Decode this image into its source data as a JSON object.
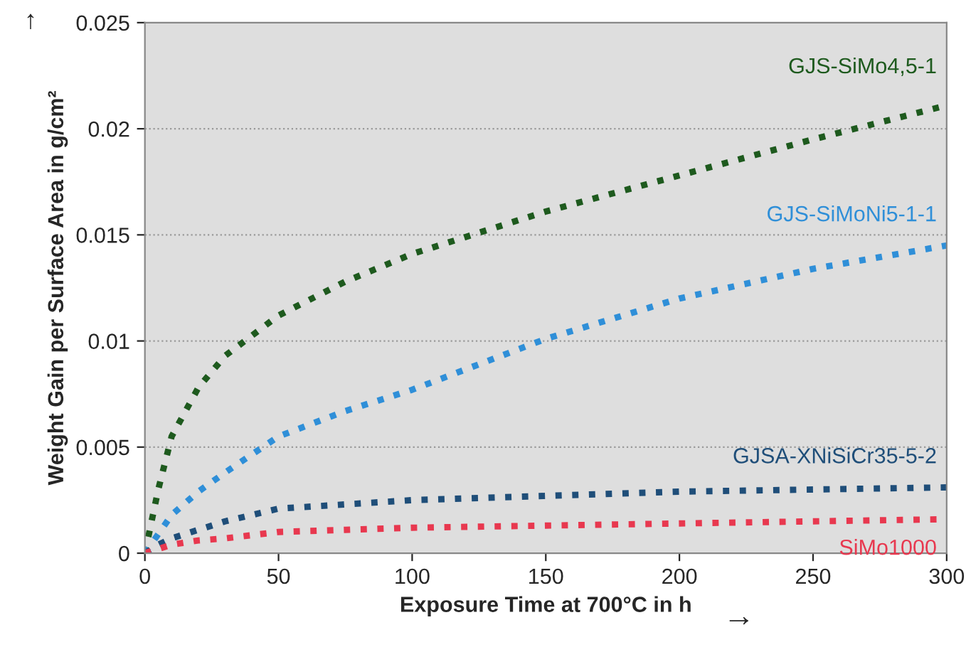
{
  "chart_data": {
    "type": "line",
    "xlabel": "Exposure Time at 700°C in h",
    "ylabel": "Weight Gain per Surface Area in g/cm²",
    "x": [
      0,
      5,
      10,
      20,
      30,
      50,
      75,
      100,
      150,
      200,
      250,
      300
    ],
    "series": [
      {
        "name": "GJS-SiMo4,5-1",
        "color": "#1e5a1e",
        "values": [
          0,
          0.003,
          0.0055,
          0.0078,
          0.0093,
          0.0112,
          0.0128,
          0.0141,
          0.0161,
          0.0178,
          0.0195,
          0.0211
        ]
      },
      {
        "name": "GJS-SiMoNi5-1-1",
        "color": "#2f8fd8",
        "values": [
          0,
          0.0009,
          0.0018,
          0.0029,
          0.0038,
          0.0055,
          0.0067,
          0.0077,
          0.0101,
          0.012,
          0.0134,
          0.0145
        ]
      },
      {
        "name": "GJSA-XNiSiCr35-5-2",
        "color": "#1f4e79",
        "values": [
          0,
          0.0004,
          0.0007,
          0.0011,
          0.0015,
          0.0021,
          0.0023,
          0.0025,
          0.0027,
          0.0029,
          0.003,
          0.0031
        ]
      },
      {
        "name": "SiMo1000",
        "color": "#e8384f",
        "values": [
          0,
          0.0002,
          0.0004,
          0.0006,
          0.0007,
          0.001,
          0.0011,
          0.0012,
          0.0013,
          0.0014,
          0.0015,
          0.0016
        ]
      }
    ],
    "xlim": [
      0,
      300
    ],
    "xticks": [
      0,
      50,
      100,
      150,
      200,
      250,
      300
    ],
    "ylim": [
      0,
      0.025
    ],
    "yticks": [
      0,
      0.005,
      0.01,
      0.015,
      0.02,
      0.025
    ],
    "grid": "y",
    "legend": false,
    "line_style": "dotted",
    "marker": "none",
    "annotations": [
      "↑",
      "→"
    ]
  }
}
